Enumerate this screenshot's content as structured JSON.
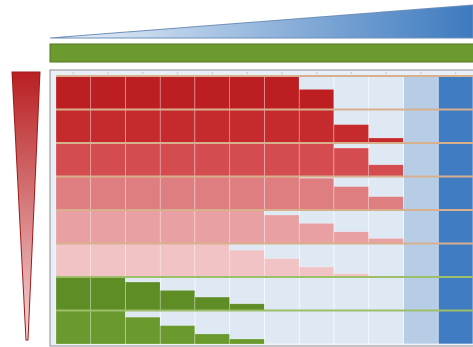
{
  "figure": {
    "columns": 12,
    "row_fractions_red_area": [
      [
        1,
        1,
        1,
        1,
        1,
        1,
        1,
        0.6,
        0,
        0,
        0,
        0
      ],
      [
        1,
        1,
        1,
        1,
        1,
        1,
        1,
        1,
        0.55,
        0.15,
        0,
        0
      ],
      [
        1,
        1,
        1,
        1,
        1,
        1,
        1,
        1,
        0.85,
        0.35,
        0,
        0
      ],
      [
        1,
        1,
        1,
        1,
        1,
        1,
        1,
        0.95,
        0.7,
        0.4,
        0,
        0
      ],
      [
        1,
        1,
        1,
        1,
        1,
        1,
        0.85,
        0.6,
        0.35,
        0.15,
        0,
        0
      ],
      [
        1,
        1,
        1,
        1,
        1,
        0.8,
        0.55,
        0.3,
        0.1,
        0,
        0,
        0
      ],
      [
        1,
        1,
        0.85,
        0.6,
        0.4,
        0.2,
        0,
        0,
        0,
        0,
        0,
        0
      ],
      [
        1,
        1,
        0.8,
        0.55,
        0.3,
        0.15,
        0,
        0,
        0,
        0,
        0,
        0
      ]
    ],
    "row_colors": [
      "#bd1e22",
      "#c52a2c",
      "#d44c50",
      "#df7e80",
      "#e8a0a2",
      "#f1c3c4",
      "#5e8c25",
      "#6a9a2d"
    ],
    "colors": {
      "blue_wedge": "#3d7abf",
      "green_bar": "#6c9a2e",
      "red_wedge": "#b91f22",
      "light_blue": "#dfe9f4",
      "mid_blue": "#b7cde6",
      "strong_blue": "#3f7cc1",
      "frame": "#8e8e8e"
    }
  }
}
